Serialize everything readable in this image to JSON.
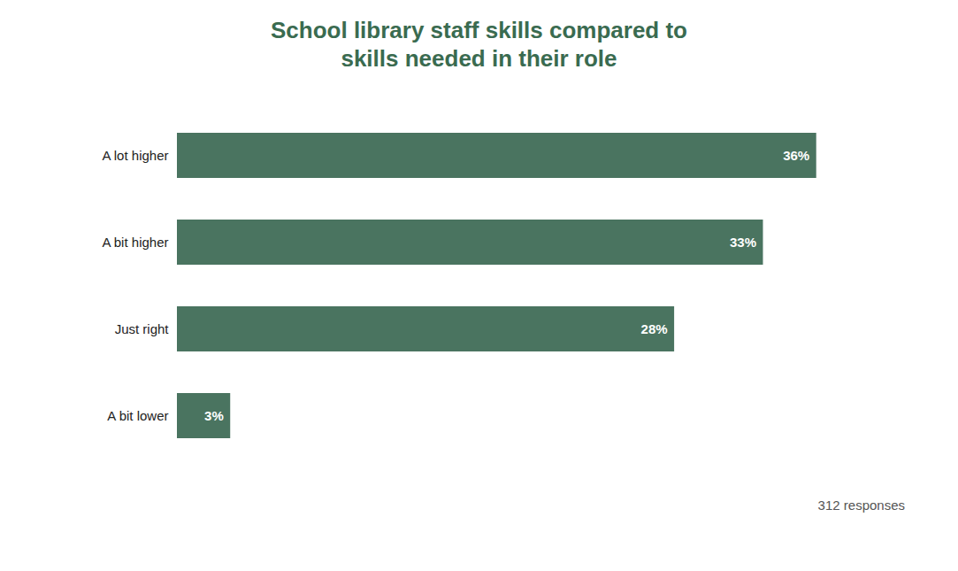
{
  "chart_data": {
    "type": "bar",
    "orientation": "horizontal",
    "title": "School library staff skills compared to\nskills needed in their role",
    "categories": [
      "A lot higher",
      "A bit higher",
      "Just right",
      "A bit lower"
    ],
    "values": [
      36,
      33,
      28,
      3
    ],
    "value_labels": [
      "36%",
      "33%",
      "28%",
      "3%"
    ],
    "data_labels": true,
    "color": "#4a7460",
    "xlim": [
      0,
      40
    ],
    "grid": false,
    "tick_labels": "y",
    "annotations": [
      "312 responses"
    ]
  }
}
